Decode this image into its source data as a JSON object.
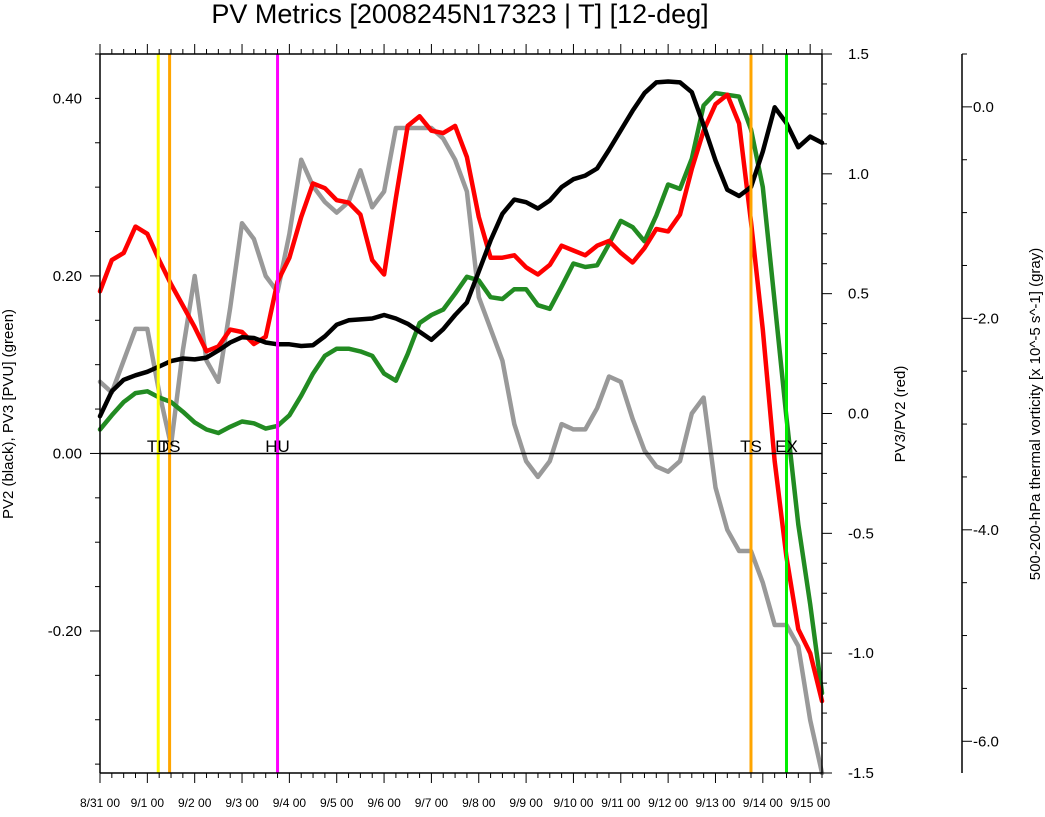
{
  "chart_data": {
    "type": "line",
    "title": "PV Metrics [2008245N17323 | T] [12-deg]",
    "x_labels": [
      "8/31 00",
      "9/1 00",
      "9/2 00",
      "9/3 00",
      "9/4 00",
      "9/5 00",
      "9/6 00",
      "9/7 00",
      "9/8 00",
      "9/9 00",
      "9/10 00",
      "9/11 00",
      "9/12 00",
      "9/13 00",
      "9/14 00",
      "9/15 00"
    ],
    "x_unit_days": [
      0,
      1,
      2,
      3,
      4,
      5,
      6,
      7,
      8,
      9,
      10,
      11,
      12,
      13,
      14,
      15
    ],
    "xlim": [
      0,
      15.25
    ],
    "axes": {
      "left": {
        "label": "PV2 (black), PV3 [PVU] (green)",
        "ylim": [
          -0.36,
          0.45
        ],
        "ticks": [
          0.4,
          0.2,
          0.0,
          -0.2
        ],
        "tick_labels": [
          "0.40",
          "0.20",
          "0.00",
          "-0.20"
        ]
      },
      "right": {
        "label": "PV3/PV2 (red)",
        "ylim": [
          -1.5,
          1.5
        ],
        "ticks": [
          1.5,
          1.0,
          0.5,
          0.0,
          -0.5,
          -1.0,
          -1.5
        ],
        "tick_labels": [
          "1.5",
          "1.0",
          "0.5",
          "0.0",
          "-0.5",
          "-1.0",
          "-1.5"
        ]
      },
      "far_right": {
        "label": "500-200-hPa thermal vorticity [x 10^-5 s^-1] (gray)",
        "ylim": [
          -6.3,
          0.5
        ],
        "ticks": [
          0.0,
          -2.0,
          -4.0,
          -6.0
        ],
        "tick_labels": [
          "0.0",
          "-2.0",
          "-4.0",
          "-6.0"
        ]
      }
    },
    "zero_line": 0.0,
    "series": [
      {
        "key": "pv2",
        "axis": "left",
        "color": "#000000",
        "x": [
          0,
          0.25,
          0.5,
          0.75,
          1,
          1.25,
          1.5,
          1.75,
          2,
          2.25,
          2.5,
          2.75,
          3,
          3.25,
          3.5,
          3.75,
          4,
          4.25,
          4.5,
          4.75,
          5,
          5.25,
          5.5,
          5.75,
          6,
          6.25,
          6.5,
          6.75,
          7,
          7.25,
          7.5,
          7.75,
          8,
          8.25,
          8.5,
          8.75,
          9,
          9.25,
          9.5,
          9.75,
          10,
          10.25,
          10.5,
          10.75,
          11,
          11.25,
          11.5,
          11.75,
          12,
          12.25,
          12.5,
          12.75,
          13,
          13.25,
          13.5,
          13.75,
          14,
          14.25,
          14.5,
          14.75,
          15,
          15.25
        ],
        "y": [
          0.042,
          0.07,
          0.083,
          0.088,
          0.092,
          0.098,
          0.104,
          0.107,
          0.106,
          0.108,
          0.116,
          0.125,
          0.131,
          0.13,
          0.125,
          0.123,
          0.123,
          0.121,
          0.122,
          0.132,
          0.145,
          0.15,
          0.151,
          0.152,
          0.156,
          0.152,
          0.146,
          0.137,
          0.128,
          0.14,
          0.156,
          0.17,
          0.205,
          0.24,
          0.27,
          0.286,
          0.283,
          0.276,
          0.285,
          0.3,
          0.309,
          0.313,
          0.321,
          0.342,
          0.364,
          0.386,
          0.406,
          0.418,
          0.419,
          0.418,
          0.407,
          0.37,
          0.33,
          0.297,
          0.29,
          0.3,
          0.34,
          0.39,
          0.372,
          0.345,
          0.357,
          0.35
        ]
      },
      {
        "key": "pv3",
        "axis": "left",
        "color": "#228b22",
        "x": [
          0,
          0.25,
          0.5,
          0.75,
          1,
          1.25,
          1.5,
          1.75,
          2,
          2.25,
          2.5,
          2.75,
          3,
          3.25,
          3.5,
          3.75,
          4,
          4.25,
          4.5,
          4.75,
          5,
          5.25,
          5.5,
          5.75,
          6,
          6.25,
          6.5,
          6.75,
          7,
          7.25,
          7.5,
          7.75,
          8,
          8.25,
          8.5,
          8.75,
          9,
          9.25,
          9.5,
          9.75,
          10,
          10.25,
          10.5,
          10.75,
          11,
          11.25,
          11.5,
          11.75,
          12,
          12.25,
          12.5,
          12.75,
          13,
          13.25,
          13.5,
          13.75,
          14,
          14.25,
          14.5,
          14.75,
          15,
          15.25
        ],
        "y": [
          0.027,
          0.043,
          0.058,
          0.068,
          0.07,
          0.063,
          0.058,
          0.047,
          0.035,
          0.027,
          0.023,
          0.03,
          0.036,
          0.034,
          0.028,
          0.031,
          0.043,
          0.065,
          0.09,
          0.11,
          0.118,
          0.118,
          0.115,
          0.11,
          0.09,
          0.082,
          0.112,
          0.147,
          0.156,
          0.162,
          0.18,
          0.199,
          0.195,
          0.176,
          0.174,
          0.185,
          0.185,
          0.167,
          0.163,
          0.188,
          0.214,
          0.21,
          0.212,
          0.236,
          0.262,
          0.255,
          0.239,
          0.268,
          0.303,
          0.298,
          0.332,
          0.392,
          0.406,
          0.404,
          0.402,
          0.365,
          0.3,
          0.17,
          0.04,
          -0.08,
          -0.17,
          -0.27
        ]
      },
      {
        "key": "ratio",
        "axis": "right",
        "color": "#ff0000",
        "x": [
          0,
          0.25,
          0.5,
          0.75,
          1,
          1.25,
          1.5,
          1.75,
          2,
          2.25,
          2.5,
          2.75,
          3,
          3.25,
          3.5,
          3.75,
          4,
          4.25,
          4.5,
          4.75,
          5,
          5.25,
          5.5,
          5.75,
          6,
          6.25,
          6.5,
          6.75,
          7,
          7.25,
          7.5,
          7.75,
          8,
          8.25,
          8.5,
          8.75,
          9,
          9.25,
          9.5,
          9.75,
          10,
          10.25,
          10.5,
          10.75,
          11,
          11.25,
          11.5,
          11.75,
          12,
          12.25,
          12.5,
          12.75,
          13,
          13.25,
          13.5,
          13.75,
          14,
          14.25,
          14.5,
          14.75,
          15,
          15.25
        ],
        "y": [
          0.51,
          0.64,
          0.67,
          0.78,
          0.75,
          0.64,
          0.54,
          0.45,
          0.36,
          0.26,
          0.28,
          0.35,
          0.34,
          0.29,
          0.32,
          0.55,
          0.65,
          0.82,
          0.96,
          0.94,
          0.89,
          0.88,
          0.83,
          0.64,
          0.58,
          0.9,
          1.2,
          1.24,
          1.18,
          1.17,
          1.2,
          1.07,
          0.82,
          0.65,
          0.65,
          0.66,
          0.61,
          0.58,
          0.62,
          0.7,
          0.68,
          0.66,
          0.7,
          0.72,
          0.67,
          0.63,
          0.69,
          0.77,
          0.76,
          0.83,
          1.02,
          1.18,
          1.29,
          1.33,
          1.21,
          0.8,
          0.35,
          -0.2,
          -0.6,
          -0.9,
          -1.0,
          -1.2
        ]
      },
      {
        "key": "thermal_vorticity",
        "axis": "far_right",
        "color": "#999999",
        "x": [
          0,
          0.25,
          0.5,
          0.75,
          1,
          1.25,
          1.5,
          1.75,
          2,
          2.25,
          2.5,
          2.75,
          3,
          3.25,
          3.5,
          3.75,
          4,
          4.25,
          4.5,
          4.75,
          5,
          5.25,
          5.5,
          5.75,
          6,
          6.25,
          6.5,
          6.75,
          7,
          7.25,
          7.5,
          7.75,
          8,
          8.25,
          8.5,
          8.75,
          9,
          9.25,
          9.5,
          9.75,
          10,
          10.25,
          10.5,
          10.75,
          11,
          11.25,
          11.5,
          11.75,
          12,
          12.25,
          12.5,
          12.75,
          13,
          13.25,
          13.5,
          13.75,
          14,
          14.25,
          14.5,
          14.75,
          15,
          15.25
        ],
        "y": [
          -2.6,
          -2.7,
          -2.4,
          -2.1,
          -2.1,
          -2.7,
          -3.2,
          -2.3,
          -1.6,
          -2.4,
          -2.6,
          -1.9,
          -1.1,
          -1.25,
          -1.6,
          -1.75,
          -1.2,
          -0.5,
          -0.75,
          -0.9,
          -1.0,
          -0.9,
          -0.6,
          -0.95,
          -0.8,
          -0.2,
          -0.2,
          -0.2,
          -0.2,
          -0.3,
          -0.5,
          -0.8,
          -1.8,
          -2.1,
          -2.4,
          -3.0,
          -3.35,
          -3.5,
          -3.35,
          -3.0,
          -3.05,
          -3.05,
          -2.85,
          -2.55,
          -2.6,
          -2.95,
          -3.25,
          -3.4,
          -3.45,
          -3.35,
          -2.9,
          -2.75,
          -3.6,
          -4.0,
          -4.2,
          -4.2,
          -4.5,
          -4.9,
          -4.9,
          -5.1,
          -5.8,
          -6.3
        ]
      }
    ],
    "events": [
      {
        "label": "TD",
        "x": 1.23,
        "color": "#ffff00",
        "label_x": 1.23
      },
      {
        "label": "TS",
        "x": 1.47,
        "color": "#ffa500",
        "label_x": 1.47
      },
      {
        "label": "HU",
        "x": 3.75,
        "color": "#ff00ff",
        "label_x": 3.75
      },
      {
        "label": "TS",
        "x": 13.75,
        "color": "#ffa500",
        "label_x": 13.75
      },
      {
        "label": "EX",
        "x": 14.5,
        "color": "#00ee00",
        "label_x": 14.5
      }
    ],
    "grid": false,
    "legend": "none"
  }
}
